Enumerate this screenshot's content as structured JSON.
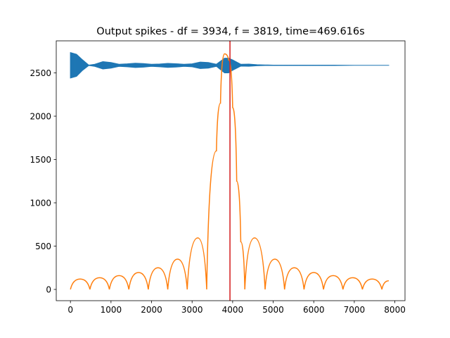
{
  "chart_data": {
    "type": "line",
    "title": "Output spikes - df = 3934, f = 3819, time=469.616s",
    "xlabel": "",
    "ylabel": "",
    "xlim": [
      -350,
      8250
    ],
    "ylim": [
      -130,
      2870
    ],
    "x_ticks": [
      0,
      1000,
      2000,
      3000,
      4000,
      5000,
      6000,
      7000,
      8000
    ],
    "x_tick_labels": [
      "0",
      "1000",
      "2000",
      "3000",
      "4000",
      "5000",
      "6000",
      "7000",
      "8000"
    ],
    "y_ticks": [
      0,
      500,
      1000,
      1500,
      2000,
      2500
    ],
    "y_tick_labels": [
      "0",
      "500",
      "1000",
      "1500",
      "2000",
      "2500"
    ],
    "grid": false,
    "colors": {
      "series1": "#1f77b4",
      "series2": "#ff7f0e",
      "vline": "#d62728"
    },
    "vertical_line": {
      "x": 3934
    },
    "series": [
      {
        "style": "dense-oscillation-envelope",
        "color": "#1f77b4",
        "x": [
          0,
          150,
          300,
          450,
          600,
          800,
          1000,
          1200,
          1400,
          1600,
          1800,
          2000,
          2200,
          2400,
          2600,
          2800,
          3000,
          3200,
          3400,
          3600,
          3800,
          3900,
          4000,
          4200,
          4400,
          4600,
          4800,
          5000,
          5500,
          6000,
          6500,
          7000,
          7500,
          7850
        ],
        "upper": [
          2735,
          2715,
          2650,
          2590,
          2600,
          2630,
          2620,
          2600,
          2605,
          2612,
          2608,
          2600,
          2603,
          2610,
          2606,
          2600,
          2605,
          2625,
          2620,
          2600,
          2670,
          2670,
          2650,
          2600,
          2602,
          2595,
          2592,
          2590,
          2590,
          2590,
          2590,
          2588,
          2588,
          2588
        ],
        "lower": [
          2440,
          2460,
          2530,
          2585,
          2575,
          2545,
          2555,
          2575,
          2570,
          2562,
          2566,
          2575,
          2570,
          2563,
          2567,
          2575,
          2570,
          2550,
          2555,
          2575,
          2500,
          2500,
          2530,
          2578,
          2576,
          2582,
          2585,
          2585,
          2585,
          2585,
          2585,
          2587,
          2587,
          2587
        ]
      },
      {
        "style": "line",
        "color": "#ff7f0e",
        "x": [
          0,
          240,
          480,
          720,
          960,
          1200,
          1440,
          1680,
          1920,
          2160,
          2400,
          2640,
          2880,
          3140,
          3360,
          3600,
          3700,
          3800,
          3900,
          4000,
          4100,
          4200,
          4300,
          4540,
          4800,
          5040,
          5280,
          5520,
          5760,
          6000,
          6240,
          6480,
          6720,
          6960,
          7200,
          7440,
          7680,
          7850
        ],
        "y": [
          0,
          120,
          0,
          135,
          0,
          160,
          0,
          195,
          0,
          250,
          0,
          350,
          0,
          595,
          0,
          1600,
          2150,
          2720,
          2650,
          2100,
          1250,
          550,
          0,
          595,
          0,
          350,
          0,
          250,
          0,
          195,
          0,
          160,
          0,
          135,
          0,
          120,
          0,
          100
        ]
      }
    ]
  }
}
